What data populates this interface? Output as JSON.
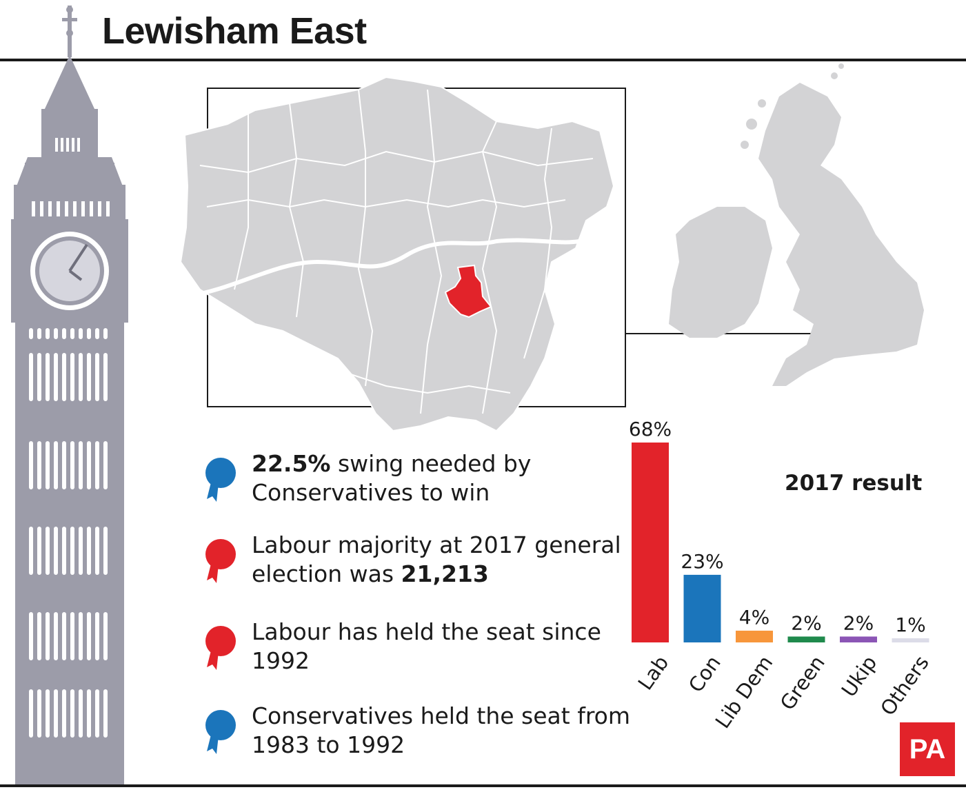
{
  "title": "Lewisham East",
  "facts": [
    {
      "bold_lead": "22.5%",
      "text_lead": " swing needed by Conservatives to win",
      "bold_tail": "",
      "rosette_color": "#1b75bb",
      "icon": "rosette-icon"
    },
    {
      "bold_lead": "",
      "text_lead": "Labour majority at 2017 general election was ",
      "bold_tail": "21,213",
      "rosette_color": "#e2232a",
      "icon": "rosette-icon"
    },
    {
      "bold_lead": "",
      "text_lead": "Labour has held the seat since 1992",
      "bold_tail": "",
      "rosette_color": "#e2232a",
      "icon": "rosette-icon"
    },
    {
      "bold_lead": "",
      "text_lead": "Conservatives held the seat from 1983 to 1992",
      "bold_tail": "",
      "rosette_color": "#1b75bb",
      "icon": "rosette-icon"
    }
  ],
  "chart_data": {
    "type": "bar",
    "title": "2017 result",
    "categories": [
      "Lab",
      "Con",
      "Lib Dem",
      "Green",
      "Ukip",
      "Others"
    ],
    "values": [
      68,
      23,
      4,
      2,
      2,
      1
    ],
    "value_labels": [
      "68%",
      "23%",
      "4%",
      "2%",
      "2%",
      "1%"
    ],
    "colors": [
      "#e2232a",
      "#1b75bb",
      "#f7963b",
      "#1f8a4c",
      "#8b55b5",
      "#dcdce8"
    ],
    "ylim": [
      0,
      68
    ],
    "grid": false,
    "legend": "none"
  },
  "maps": {
    "highlight_color": "#e2232a",
    "land_color": "#d3d3d5"
  },
  "logo": "PA"
}
